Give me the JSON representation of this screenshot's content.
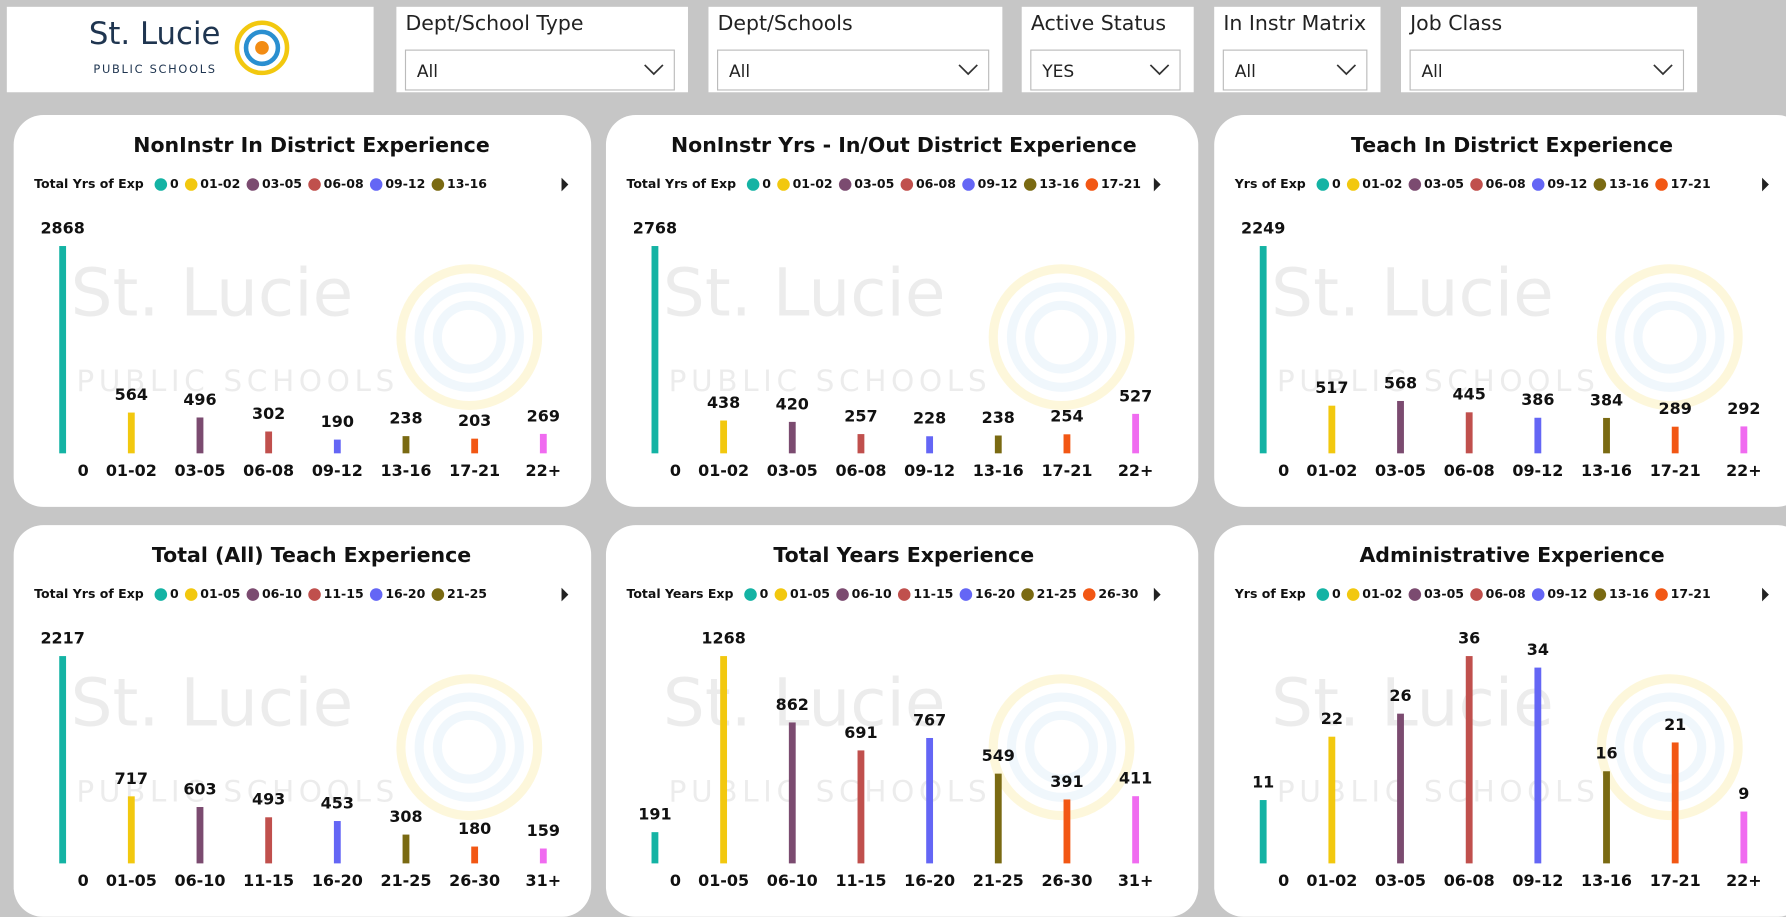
{
  "logo": {
    "name": "St. Lucie",
    "subtitle": "PUBLIC SCHOOLS"
  },
  "filters": [
    {
      "label": "Dept/School Type",
      "value": "All"
    },
    {
      "label": "Dept/Schools",
      "value": "All"
    },
    {
      "label": "Active Status",
      "value": "YES"
    },
    {
      "label": "In Instr Matrix",
      "value": "All"
    },
    {
      "label": "Job Class",
      "value": "All"
    }
  ],
  "chart_data": [
    {
      "type": "bar",
      "title": "NonInstr In District Experience",
      "legend": {
        "title": "Total Yrs of Exp",
        "entries": [
          "0",
          "01-02",
          "03-05",
          "06-08",
          "09-12",
          "13-16"
        ]
      },
      "categories": [
        "0",
        "01-02",
        "03-05",
        "06-08",
        "09-12",
        "13-16",
        "17-21",
        "22+"
      ],
      "values": [
        2868,
        564,
        496,
        302,
        190,
        238,
        203,
        269
      ],
      "colors": [
        "#14b3a4",
        "#f2c80f",
        "#7b4b70",
        "#c0504d",
        "#6466f5",
        "#7a6a12",
        "#f25714",
        "#f06bf0"
      ]
    },
    {
      "type": "bar",
      "title": "NonInstr Yrs - In/Out District Experience",
      "legend": {
        "title": "Total Yrs of Exp",
        "entries": [
          "0",
          "01-02",
          "03-05",
          "06-08",
          "09-12",
          "13-16",
          "17-21"
        ]
      },
      "categories": [
        "0",
        "01-02",
        "03-05",
        "06-08",
        "09-12",
        "13-16",
        "17-21",
        "22+"
      ],
      "values": [
        2768,
        438,
        420,
        257,
        228,
        238,
        254,
        527
      ],
      "colors": [
        "#14b3a4",
        "#f2c80f",
        "#7b4b70",
        "#c0504d",
        "#6466f5",
        "#7a6a12",
        "#f25714",
        "#f06bf0"
      ]
    },
    {
      "type": "bar",
      "title": "Teach In District Experience",
      "legend": {
        "title": "Yrs of Exp",
        "entries": [
          "0",
          "01-02",
          "03-05",
          "06-08",
          "09-12",
          "13-16",
          "17-21"
        ]
      },
      "categories": [
        "0",
        "01-02",
        "03-05",
        "06-08",
        "09-12",
        "13-16",
        "17-21",
        "22+"
      ],
      "values": [
        2249,
        517,
        568,
        445,
        386,
        384,
        289,
        292
      ],
      "colors": [
        "#14b3a4",
        "#f2c80f",
        "#7b4b70",
        "#c0504d",
        "#6466f5",
        "#7a6a12",
        "#f25714",
        "#f06bf0"
      ]
    },
    {
      "type": "bar",
      "title": "Total (All) Teach Experience",
      "legend": {
        "title": "Total Yrs of Exp",
        "entries": [
          "0",
          "01-05",
          "06-10",
          "11-15",
          "16-20",
          "21-25"
        ]
      },
      "categories": [
        "0",
        "01-05",
        "06-10",
        "11-15",
        "16-20",
        "21-25",
        "26-30",
        "31+"
      ],
      "values": [
        2217,
        717,
        603,
        493,
        453,
        308,
        180,
        159
      ],
      "colors": [
        "#14b3a4",
        "#f2c80f",
        "#7b4b70",
        "#c0504d",
        "#6466f5",
        "#7a6a12",
        "#f25714",
        "#f06bf0"
      ]
    },
    {
      "type": "bar",
      "title": "Total Years Experience",
      "legend": {
        "title": "Total Years Exp",
        "entries": [
          "0",
          "01-05",
          "06-10",
          "11-15",
          "16-20",
          "21-25",
          "26-30"
        ]
      },
      "categories": [
        "0",
        "01-05",
        "06-10",
        "11-15",
        "16-20",
        "21-25",
        "26-30",
        "31+"
      ],
      "values": [
        191,
        1268,
        862,
        691,
        767,
        549,
        391,
        411
      ],
      "colors": [
        "#14b3a4",
        "#f2c80f",
        "#7b4b70",
        "#c0504d",
        "#6466f5",
        "#7a6a12",
        "#f25714",
        "#f06bf0"
      ]
    },
    {
      "type": "bar",
      "title": "Administrative Experience",
      "legend": {
        "title": "Yrs of Exp",
        "entries": [
          "0",
          "01-02",
          "03-05",
          "06-08",
          "09-12",
          "13-16",
          "17-21"
        ]
      },
      "categories": [
        "0",
        "01-02",
        "03-05",
        "06-08",
        "09-12",
        "13-16",
        "17-21",
        "22+"
      ],
      "values": [
        11,
        22,
        26,
        36,
        34,
        16,
        21,
        9
      ],
      "colors": [
        "#14b3a4",
        "#f2c80f",
        "#7b4b70",
        "#c0504d",
        "#6466f5",
        "#7a6a12",
        "#f25714",
        "#f06bf0"
      ]
    }
  ]
}
